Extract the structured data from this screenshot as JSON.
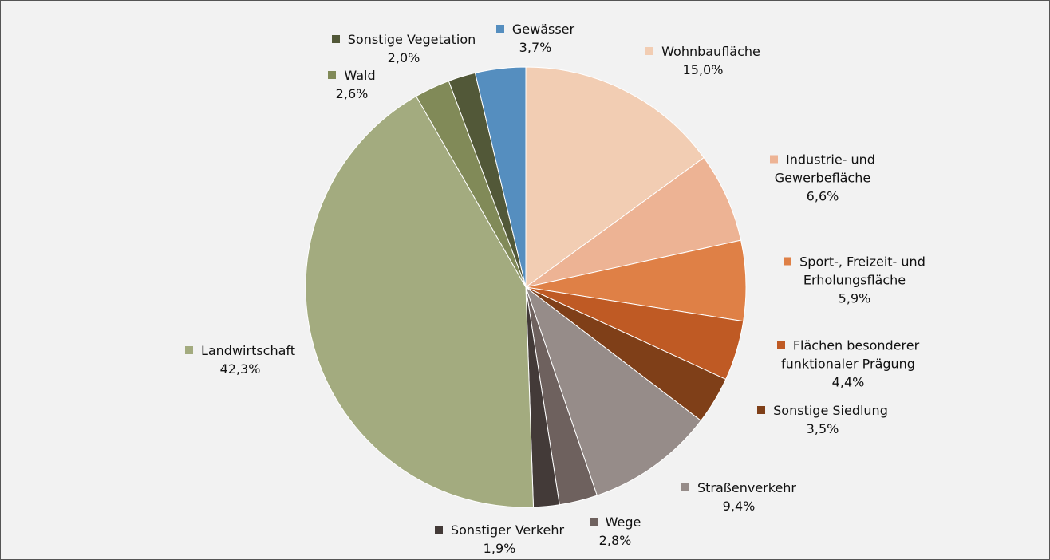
{
  "chart_data": {
    "type": "pie",
    "categories": [
      "Wohnbaufläche",
      "Industrie- und Gewerbefläche",
      "Sport-, Freizeit- und Erholungsfläche",
      "Flächen besonderer funktionaler Prägung",
      "Sonstige Siedlung",
      "Straßenverkehr",
      "Wege",
      "Sonstiger Verkehr",
      "Landwirtschaft",
      "Wald",
      "Sonstige Vegetation",
      "Gewässer"
    ],
    "values": [
      15.0,
      6.6,
      5.9,
      4.4,
      3.5,
      9.4,
      2.8,
      1.9,
      42.3,
      2.6,
      2.0,
      3.7
    ],
    "value_labels": [
      "15,0%",
      "6,6%",
      "5,9%",
      "4,4%",
      "3,5%",
      "9,4%",
      "2,8%",
      "1,9%",
      "42,3%",
      "2,6%",
      "2,0%",
      "3,7%"
    ],
    "colors": [
      "#f2cdb3",
      "#edb394",
      "#df8046",
      "#bf5a24",
      "#7f3f18",
      "#968c89",
      "#6e615e",
      "#433a38",
      "#a3ab7f",
      "#818a58",
      "#525838",
      "#558ebf"
    ]
  }
}
